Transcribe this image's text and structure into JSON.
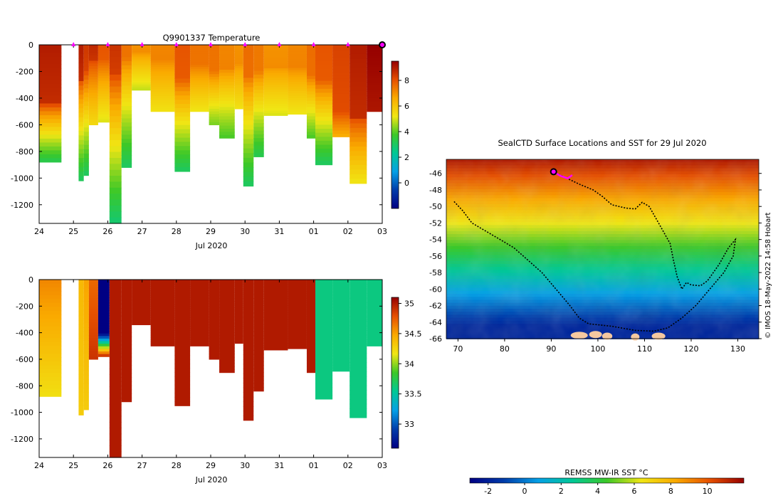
{
  "chart_data": [
    {
      "type": "heatmap",
      "title": "Q9901337  Temperature",
      "xlabel": "Jul 2020",
      "ylabel": "",
      "x_ticks": [
        "24",
        "25",
        "26",
        "27",
        "28",
        "29",
        "30",
        "31",
        "01",
        "02",
        "03"
      ],
      "y_ticks": [
        0,
        -200,
        -400,
        -600,
        -800,
        -1000,
        -1200
      ],
      "ylim": [
        -1340,
        0
      ],
      "colorbar": {
        "min": -2,
        "max": 9.5,
        "ticks": [
          0,
          2,
          4,
          6,
          8
        ]
      },
      "surface_markers_day": [
        25.0,
        26.0,
        27.0,
        28.0,
        29.0,
        30.0,
        31.0,
        32.0,
        33.0
      ],
      "last_position_day": 34.0,
      "profiles": [
        {
          "start": 24.0,
          "end": 24.65,
          "depth": 880,
          "surface": 9.0,
          "bottom": 3.2,
          "warm_until": 450
        },
        {
          "start": 25.15,
          "end": 25.3,
          "depth": 1020,
          "surface": 9.0,
          "bottom": 3.0,
          "warm_until": 260
        },
        {
          "start": 25.3,
          "end": 25.45,
          "depth": 980,
          "surface": 8.5,
          "bottom": 3.0,
          "warm_until": 200
        },
        {
          "start": 25.45,
          "end": 25.72,
          "depth": 600,
          "surface": 8.8,
          "bottom": 5.5,
          "warm_until": 120
        },
        {
          "start": 25.72,
          "end": 26.05,
          "depth": 580,
          "surface": 8.0,
          "bottom": 5.0,
          "warm_until": 100
        },
        {
          "start": 26.05,
          "end": 26.4,
          "depth": 1340,
          "surface": 8.6,
          "bottom": 2.8,
          "warm_until": 230
        },
        {
          "start": 26.4,
          "end": 26.7,
          "depth": 920,
          "surface": 7.5,
          "bottom": 3.0,
          "warm_until": 100
        },
        {
          "start": 26.7,
          "end": 27.25,
          "depth": 340,
          "surface": 7.0,
          "bottom": 4.8,
          "warm_until": 60
        },
        {
          "start": 27.25,
          "end": 27.95,
          "depth": 500,
          "surface": 7.2,
          "bottom": 5.3,
          "warm_until": 120
        },
        {
          "start": 27.95,
          "end": 28.4,
          "depth": 950,
          "surface": 8.0,
          "bottom": 3.0,
          "warm_until": 250
        },
        {
          "start": 28.4,
          "end": 28.95,
          "depth": 500,
          "surface": 7.5,
          "bottom": 5.2,
          "warm_until": 150
        },
        {
          "start": 28.95,
          "end": 29.25,
          "depth": 600,
          "surface": 7.5,
          "bottom": 4.2,
          "warm_until": 200
        },
        {
          "start": 29.25,
          "end": 29.7,
          "depth": 700,
          "surface": 7.2,
          "bottom": 3.8,
          "warm_until": 180
        },
        {
          "start": 29.7,
          "end": 29.95,
          "depth": 480,
          "surface": 7.0,
          "bottom": 5.3,
          "warm_until": 150
        },
        {
          "start": 29.95,
          "end": 30.25,
          "depth": 1060,
          "surface": 7.6,
          "bottom": 3.0,
          "warm_until": 230
        },
        {
          "start": 30.25,
          "end": 30.55,
          "depth": 840,
          "surface": 7.4,
          "bottom": 3.2,
          "warm_until": 200
        },
        {
          "start": 30.55,
          "end": 31.25,
          "depth": 530,
          "surface": 7.0,
          "bottom": 5.0,
          "warm_until": 170
        },
        {
          "start": 31.25,
          "end": 31.8,
          "depth": 520,
          "surface": 7.2,
          "bottom": 5.2,
          "warm_until": 170
        },
        {
          "start": 31.8,
          "end": 32.05,
          "depth": 700,
          "surface": 7.6,
          "bottom": 3.8,
          "warm_until": 230
        },
        {
          "start": 32.05,
          "end": 32.55,
          "depth": 900,
          "surface": 8.0,
          "bottom": 3.0,
          "warm_until": 260
        },
        {
          "start": 32.55,
          "end": 33.05,
          "depth": 690,
          "surface": 8.3,
          "bottom": 6.5,
          "warm_until": 500
        },
        {
          "start": 33.05,
          "end": 33.55,
          "depth": 1040,
          "surface": 9.0,
          "bottom": 5.2,
          "warm_until": 550
        },
        {
          "start": 33.55,
          "end": 34.0,
          "depth": 500,
          "surface": 9.5,
          "bottom": 9.0,
          "warm_until": 500
        }
      ]
    },
    {
      "type": "heatmap",
      "title": "",
      "xlabel": "Jul 2020",
      "ylabel": "",
      "x_ticks": [
        "24",
        "25",
        "26",
        "27",
        "28",
        "29",
        "30",
        "31",
        "01",
        "02",
        "03"
      ],
      "y_ticks": [
        0,
        -200,
        -400,
        -600,
        -800,
        -1000,
        -1200
      ],
      "ylim": [
        -1340,
        0
      ],
      "colorbar": {
        "min": 32.6,
        "max": 35.1,
        "ticks": [
          33,
          33.5,
          34,
          34.5,
          35
        ]
      },
      "profiles": [
        {
          "start": 24.0,
          "end": 24.65,
          "depth": 880,
          "surface": 34.6,
          "bottom": 34.2
        },
        {
          "start": 25.15,
          "end": 25.3,
          "depth": 1020,
          "surface": 34.4,
          "bottom": 34.3
        },
        {
          "start": 25.3,
          "end": 25.45,
          "depth": 980,
          "surface": 34.5,
          "bottom": 34.3
        },
        {
          "start": 25.45,
          "end": 25.72,
          "depth": 600,
          "surface": 34.7,
          "bottom": 34.9
        },
        {
          "start": 25.72,
          "end": 26.05,
          "depth": 580,
          "surface": 32.6,
          "bottom": 34.8
        },
        {
          "start": 26.05,
          "end": 26.4,
          "depth": 1340,
          "surface": 35.0,
          "bottom": 35.0
        },
        {
          "start": 26.4,
          "end": 26.7,
          "depth": 920,
          "surface": 35.0,
          "bottom": 35.0
        },
        {
          "start": 26.7,
          "end": 27.25,
          "depth": 340,
          "surface": 35.0,
          "bottom": 35.0
        },
        {
          "start": 27.25,
          "end": 27.95,
          "depth": 500,
          "surface": 35.0,
          "bottom": 35.0
        },
        {
          "start": 27.95,
          "end": 28.4,
          "depth": 950,
          "surface": 35.0,
          "bottom": 35.0
        },
        {
          "start": 28.4,
          "end": 28.95,
          "depth": 500,
          "surface": 35.0,
          "bottom": 35.0
        },
        {
          "start": 28.95,
          "end": 29.25,
          "depth": 600,
          "surface": 35.0,
          "bottom": 35.0
        },
        {
          "start": 29.25,
          "end": 29.7,
          "depth": 700,
          "surface": 35.0,
          "bottom": 35.0
        },
        {
          "start": 29.7,
          "end": 29.95,
          "depth": 480,
          "surface": 35.0,
          "bottom": 35.0
        },
        {
          "start": 29.95,
          "end": 30.25,
          "depth": 1060,
          "surface": 35.0,
          "bottom": 35.0
        },
        {
          "start": 30.25,
          "end": 30.55,
          "depth": 840,
          "surface": 35.0,
          "bottom": 35.0
        },
        {
          "start": 30.55,
          "end": 31.25,
          "depth": 530,
          "surface": 35.0,
          "bottom": 35.0
        },
        {
          "start": 31.25,
          "end": 31.8,
          "depth": 520,
          "surface": 35.0,
          "bottom": 35.0
        },
        {
          "start": 31.8,
          "end": 32.05,
          "depth": 700,
          "surface": 35.0,
          "bottom": 35.0
        },
        {
          "start": 32.05,
          "end": 32.55,
          "depth": 900,
          "surface": 33.6,
          "bottom": 33.6
        },
        {
          "start": 32.55,
          "end": 33.05,
          "depth": 690,
          "surface": 33.6,
          "bottom": 33.6
        },
        {
          "start": 33.05,
          "end": 33.55,
          "depth": 1040,
          "surface": 33.6,
          "bottom": 33.6
        },
        {
          "start": 33.55,
          "end": 34.0,
          "depth": 500,
          "surface": 33.6,
          "bottom": 33.6
        }
      ]
    },
    {
      "type": "heatmap",
      "title": "SealCTD Surface Locations and SST for 29 Jul 2020",
      "xlabel": "",
      "ylabel": "",
      "x_ticks": [
        70,
        80,
        90,
        100,
        110,
        120,
        130
      ],
      "y_ticks": [
        -46,
        -48,
        -50,
        -52,
        -54,
        -56,
        -58,
        -60,
        -62,
        -64,
        -66
      ],
      "xlim": [
        67.5,
        134.5
      ],
      "ylim": [
        -66,
        -44.3
      ],
      "credit": "© IMOS 18-May-2022 14:58 Hobart",
      "colorbar": {
        "label": "REMSS MW-IR SST °C",
        "min": -3,
        "max": 12,
        "ticks": [
          -2,
          0,
          2,
          4,
          6,
          8,
          10
        ]
      },
      "track": [
        [
          90.5,
          -45.8
        ],
        [
          93,
          -46.5
        ],
        [
          96,
          -47.3
        ],
        [
          99,
          -48
        ],
        [
          101,
          -48.8
        ],
        [
          103,
          -49.8
        ],
        [
          106,
          -50.2
        ],
        [
          108,
          -50.3
        ],
        [
          109.5,
          -49.5
        ],
        [
          111,
          -50
        ],
        [
          112.5,
          -51.5
        ],
        [
          114,
          -53
        ],
        [
          115.5,
          -54.5
        ],
        [
          116.2,
          -56.5
        ],
        [
          117,
          -58.5
        ],
        [
          118,
          -60
        ],
        [
          119,
          -59.2
        ],
        [
          120,
          -59.5
        ],
        [
          122,
          -59.6
        ],
        [
          123.5,
          -59
        ],
        [
          126,
          -57
        ],
        [
          128,
          -55
        ],
        [
          129.5,
          -54
        ],
        [
          129,
          -56
        ],
        [
          127,
          -58
        ],
        [
          124,
          -60
        ],
        [
          121,
          -62
        ],
        [
          118,
          -63.5
        ],
        [
          115,
          -64.7
        ],
        [
          112,
          -65.1
        ],
        [
          108,
          -65
        ],
        [
          103,
          -64.5
        ],
        [
          98,
          -64.2
        ],
        [
          96,
          -63.5
        ],
        [
          94,
          -62
        ],
        [
          91,
          -60
        ],
        [
          88,
          -58
        ],
        [
          85,
          -56.5
        ],
        [
          82,
          -55
        ],
        [
          79,
          -54
        ],
        [
          76,
          -53
        ],
        [
          73,
          -52
        ],
        [
          71,
          -50.5
        ],
        [
          69,
          -49.3
        ]
      ],
      "recent_track": [
        [
          90.5,
          -45.8
        ],
        [
          92,
          -46.3
        ],
        [
          93.5,
          -46.6
        ],
        [
          94.5,
          -46.2
        ]
      ],
      "current_position": [
        90.5,
        -45.8
      ]
    }
  ]
}
